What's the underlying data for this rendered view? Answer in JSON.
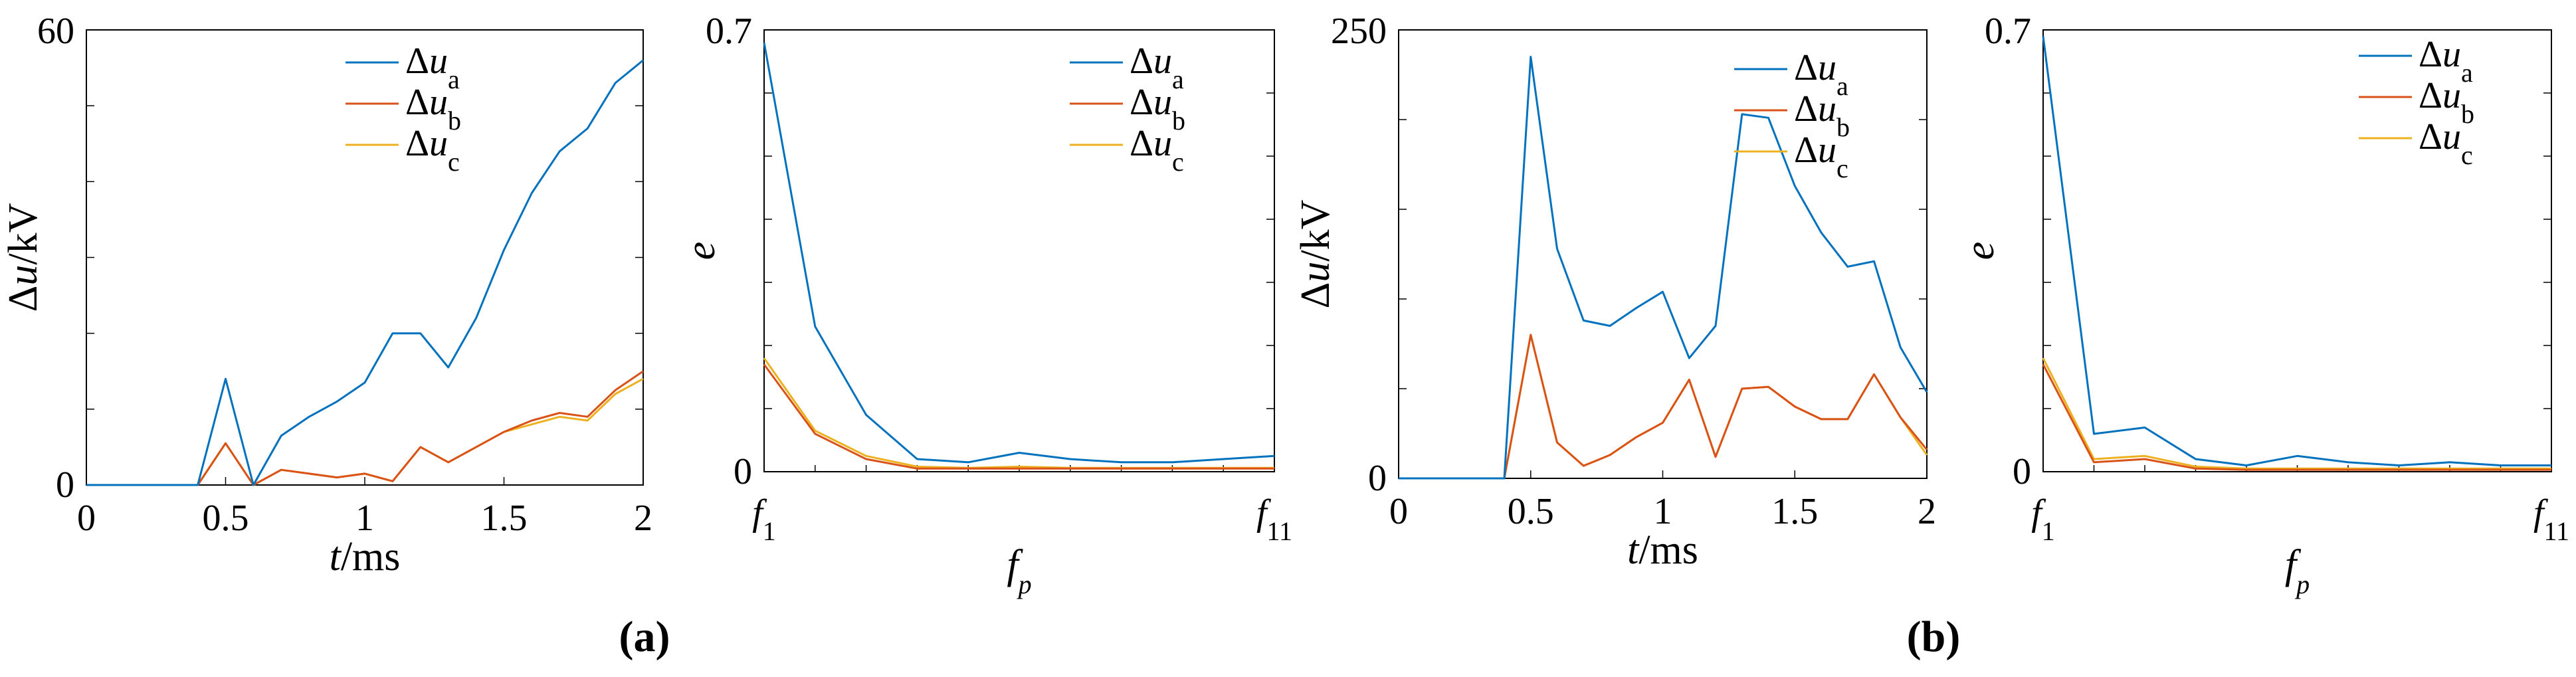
{
  "colors": {
    "series_a": "#0072BD",
    "series_b": "#D95319",
    "series_c": "#EDB120",
    "axis": "#000000"
  },
  "legend_entries": [
    {
      "prefix": "Δu",
      "sub": "a"
    },
    {
      "prefix": "Δu",
      "sub": "b"
    },
    {
      "prefix": "Δu",
      "sub": "c"
    }
  ],
  "panel_labels": {
    "a": "(a)",
    "b": "(b)"
  },
  "chart_data": [
    {
      "type": "line",
      "xlabel": "t/ms",
      "ylabel": "Δu/kV",
      "xlim": [
        0,
        2
      ],
      "ylim": [
        0,
        60
      ],
      "xticks": [
        "0",
        "0.5",
        "1",
        "1.5",
        "2"
      ],
      "yticks": [
        "0",
        "60"
      ],
      "legend_position": "top-right",
      "x": [
        0,
        0.1,
        0.2,
        0.3,
        0.4,
        0.5,
        0.6,
        0.7,
        0.8,
        0.9,
        1.0,
        1.1,
        1.2,
        1.3,
        1.4,
        1.5,
        1.6,
        1.7,
        1.8,
        1.9,
        2.0
      ],
      "series": [
        {
          "name": "Δua",
          "values": [
            0,
            0,
            0,
            0,
            0,
            14,
            0,
            6.5,
            9,
            11,
            13.5,
            20,
            20,
            15.5,
            22,
            31,
            38.5,
            44,
            47,
            53,
            56
          ]
        },
        {
          "name": "Δub",
          "values": [
            0,
            0,
            0,
            0,
            0,
            5.5,
            0,
            2,
            1.5,
            1,
            1.5,
            0.5,
            5,
            3,
            5,
            7,
            8.5,
            9.5,
            9,
            12.5,
            15
          ]
        },
        {
          "name": "Δuc",
          "values": [
            0,
            0,
            0,
            0,
            0,
            5.5,
            0,
            2,
            1.5,
            1,
            1.5,
            0.5,
            5,
            3,
            5,
            7,
            8,
            9,
            8.5,
            12,
            14
          ]
        }
      ]
    },
    {
      "type": "line",
      "xlabel": "fp",
      "ylabel": "e",
      "xlim": [
        1,
        11
      ],
      "ylim": [
        0,
        0.7
      ],
      "xticks": [
        "f1",
        "f11"
      ],
      "yticks": [
        "0",
        "0.7"
      ],
      "legend_position": "top-right",
      "x": [
        1,
        2,
        3,
        4,
        5,
        6,
        7,
        8,
        9,
        10,
        11
      ],
      "series": [
        {
          "name": "Δua",
          "values": [
            0.68,
            0.23,
            0.09,
            0.02,
            0.015,
            0.03,
            0.02,
            0.015,
            0.015,
            0.02,
            0.025
          ]
        },
        {
          "name": "Δub",
          "values": [
            0.17,
            0.06,
            0.02,
            0.005,
            0.005,
            0.005,
            0.005,
            0.005,
            0.005,
            0.005,
            0.005
          ]
        },
        {
          "name": "Δuc",
          "values": [
            0.18,
            0.065,
            0.025,
            0.008,
            0.006,
            0.008,
            0.006,
            0.006,
            0.006,
            0.006,
            0.006
          ]
        }
      ]
    },
    {
      "type": "line",
      "xlabel": "t/ms",
      "ylabel": "Δu/kV",
      "xlim": [
        0,
        2
      ],
      "ylim": [
        0,
        250
      ],
      "xticks": [
        "0",
        "0.5",
        "1",
        "1.5",
        "2"
      ],
      "yticks": [
        "0",
        "250"
      ],
      "legend_position": "top-right",
      "x": [
        0,
        0.1,
        0.2,
        0.3,
        0.4,
        0.5,
        0.6,
        0.7,
        0.8,
        0.9,
        1.0,
        1.1,
        1.2,
        1.3,
        1.4,
        1.5,
        1.6,
        1.7,
        1.8,
        1.9,
        2.0
      ],
      "series": [
        {
          "name": "Δua",
          "values": [
            0,
            0,
            0,
            0,
            0,
            235,
            128,
            88,
            85,
            95,
            104,
            67,
            85,
            203,
            201,
            163,
            137,
            118,
            121,
            73,
            48
          ]
        },
        {
          "name": "Δub",
          "values": [
            0,
            0,
            0,
            0,
            0,
            80,
            20,
            7,
            13,
            23,
            31,
            55,
            12,
            50,
            51,
            40,
            33,
            33,
            58,
            34,
            16
          ]
        },
        {
          "name": "Δuc",
          "values": [
            0,
            0,
            0,
            0,
            0,
            80,
            20,
            7,
            13,
            23,
            31,
            55,
            12,
            50,
            51,
            40,
            33,
            33,
            58,
            34,
            13
          ]
        }
      ]
    },
    {
      "type": "line",
      "xlabel": "fp",
      "ylabel": "e",
      "xlim": [
        1,
        11
      ],
      "ylim": [
        0,
        0.7
      ],
      "xticks": [
        "f1",
        "f11"
      ],
      "yticks": [
        "0",
        "0.7"
      ],
      "legend_position": "top-right",
      "x": [
        1,
        2,
        3,
        4,
        5,
        6,
        7,
        8,
        9,
        10,
        11
      ],
      "series": [
        {
          "name": "Δua",
          "values": [
            0.69,
            0.06,
            0.07,
            0.02,
            0.01,
            0.025,
            0.015,
            0.01,
            0.015,
            0.01,
            0.01
          ]
        },
        {
          "name": "Δub",
          "values": [
            0.17,
            0.015,
            0.02,
            0.005,
            0.003,
            0.003,
            0.003,
            0.003,
            0.003,
            0.003,
            0.003
          ]
        },
        {
          "name": "Δuc",
          "values": [
            0.18,
            0.02,
            0.025,
            0.008,
            0.005,
            0.005,
            0.005,
            0.005,
            0.005,
            0.005,
            0.005
          ]
        }
      ]
    }
  ]
}
